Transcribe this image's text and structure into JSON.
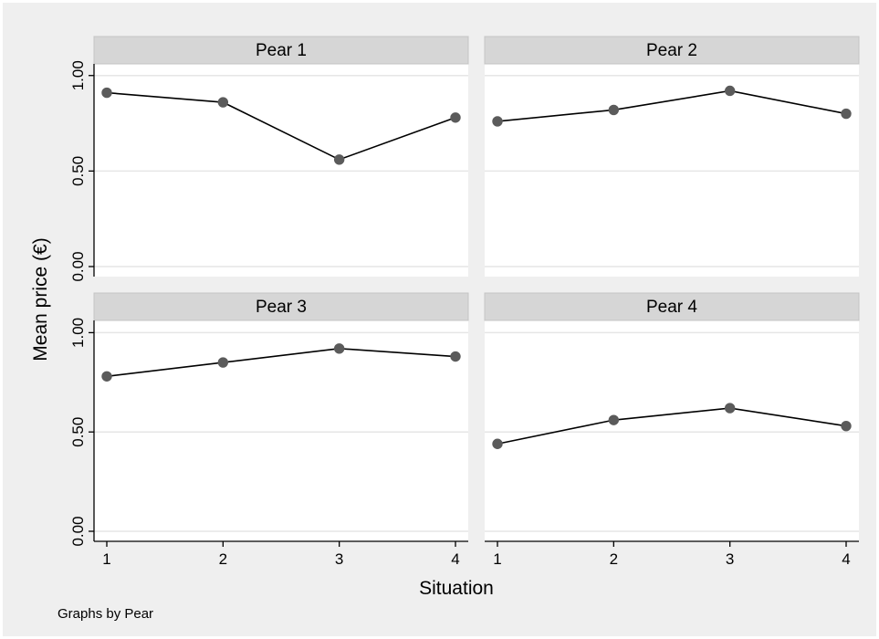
{
  "chart_data": {
    "type": "line",
    "layout": "2x2 small multiples",
    "xlabel": "Situation",
    "ylabel": "Mean price (€)",
    "note": "Graphs by Pear",
    "x": [
      1,
      2,
      3,
      4
    ],
    "xticks": [
      "1",
      "2",
      "3",
      "4"
    ],
    "yticks": [
      "0.00",
      "0.50",
      "1.00"
    ],
    "ytick_values": [
      0,
      0.5,
      1.0
    ],
    "ylim": [
      0,
      1.08
    ],
    "grid": true,
    "point_color": "#5b5b5b",
    "line_color": "#000000",
    "background": "#efefef",
    "panels": [
      {
        "title": "Pear 1",
        "values": [
          0.91,
          0.86,
          0.56,
          0.78
        ]
      },
      {
        "title": "Pear 2",
        "values": [
          0.76,
          0.82,
          0.92,
          0.8
        ]
      },
      {
        "title": "Pear 3",
        "values": [
          0.78,
          0.85,
          0.92,
          0.88
        ]
      },
      {
        "title": "Pear 4",
        "values": [
          0.44,
          0.56,
          0.62,
          0.53
        ]
      }
    ]
  }
}
